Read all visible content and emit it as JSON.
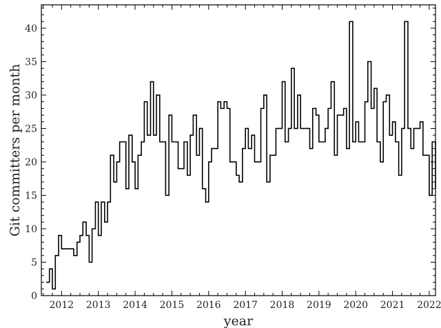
{
  "chart_data": {
    "type": "line",
    "step": true,
    "xlabel": "year",
    "ylabel": "Git committers per month",
    "xlim": [
      2011.45,
      2022.17
    ],
    "ylim": [
      0,
      43.5
    ],
    "xticks": [
      2012,
      2013,
      2014,
      2015,
      2016,
      2017,
      2018,
      2019,
      2020,
      2021,
      2022
    ],
    "yticks": [
      0,
      5,
      10,
      15,
      20,
      25,
      30,
      35,
      40
    ],
    "grid": false,
    "legend": "none",
    "line_color": "#000000",
    "series": [
      {
        "x": [
          2011.58,
          2011.67,
          2011.75,
          2011.83,
          2011.92,
          2012.0,
          2012.08,
          2012.17,
          2012.25,
          2012.33,
          2012.42,
          2012.5,
          2012.58,
          2012.67,
          2012.75,
          2012.83,
          2012.92,
          2013.0,
          2013.08,
          2013.17,
          2013.25,
          2013.33,
          2013.42,
          2013.5,
          2013.58,
          2013.67,
          2013.75,
          2013.83,
          2013.92,
          2014.0,
          2014.08,
          2014.17,
          2014.25,
          2014.33,
          2014.42,
          2014.5,
          2014.58,
          2014.67,
          2014.75,
          2014.83,
          2014.92,
          2015.0,
          2015.08,
          2015.17,
          2015.25,
          2015.33,
          2015.42,
          2015.5,
          2015.58,
          2015.67,
          2015.75,
          2015.83,
          2015.92,
          2016.0,
          2016.08,
          2016.17,
          2016.25,
          2016.33,
          2016.42,
          2016.5,
          2016.58,
          2016.67,
          2016.75,
          2016.83,
          2016.92,
          2017.0,
          2017.08,
          2017.17,
          2017.25,
          2017.33,
          2017.42,
          2017.5,
          2017.58,
          2017.67,
          2017.75,
          2017.83,
          2017.92,
          2018.0,
          2018.08,
          2018.17,
          2018.25,
          2018.33,
          2018.42,
          2018.5,
          2018.58,
          2018.67,
          2018.75,
          2018.83,
          2018.92,
          2019.0,
          2019.08,
          2019.17,
          2019.25,
          2019.33,
          2019.42,
          2019.5,
          2019.58,
          2019.67,
          2019.75,
          2019.83,
          2019.92,
          2020.0,
          2020.08,
          2020.17,
          2020.25,
          2020.33,
          2020.42,
          2020.5,
          2020.58,
          2020.67,
          2020.75,
          2020.83,
          2020.92,
          2021.0,
          2021.08,
          2021.17,
          2021.25,
          2021.33,
          2021.42,
          2021.5,
          2021.58,
          2021.67,
          2021.75,
          2021.83,
          2021.92,
          2022.0,
          2022.08,
          2022.17
        ],
        "y": [
          2,
          4,
          1,
          6,
          9,
          7,
          7,
          7,
          7,
          6,
          8,
          9,
          11,
          9,
          5,
          10,
          14,
          9,
          14,
          11,
          14,
          21,
          17,
          20,
          23,
          23,
          16,
          24,
          20,
          16,
          21,
          23,
          29,
          24,
          32,
          24,
          30,
          23,
          23,
          15,
          27,
          23,
          23,
          19,
          19,
          23,
          18,
          24,
          27,
          21,
          25,
          16,
          14,
          20,
          22,
          22,
          29,
          28,
          29,
          28,
          20,
          20,
          18,
          17,
          22,
          25,
          22,
          24,
          20,
          20,
          28,
          30,
          17,
          21,
          21,
          25,
          25,
          32,
          23,
          25,
          34,
          25,
          30,
          25,
          25,
          25,
          22,
          28,
          27,
          23,
          23,
          25,
          28,
          32,
          21,
          27,
          27,
          28,
          22,
          41,
          23,
          26,
          23,
          23,
          29,
          35,
          28,
          31,
          23,
          20,
          29,
          30,
          24,
          26,
          23,
          18,
          25,
          41,
          25,
          22,
          25,
          25,
          26,
          21,
          21,
          15,
          23,
          16
        ]
      }
    ]
  }
}
